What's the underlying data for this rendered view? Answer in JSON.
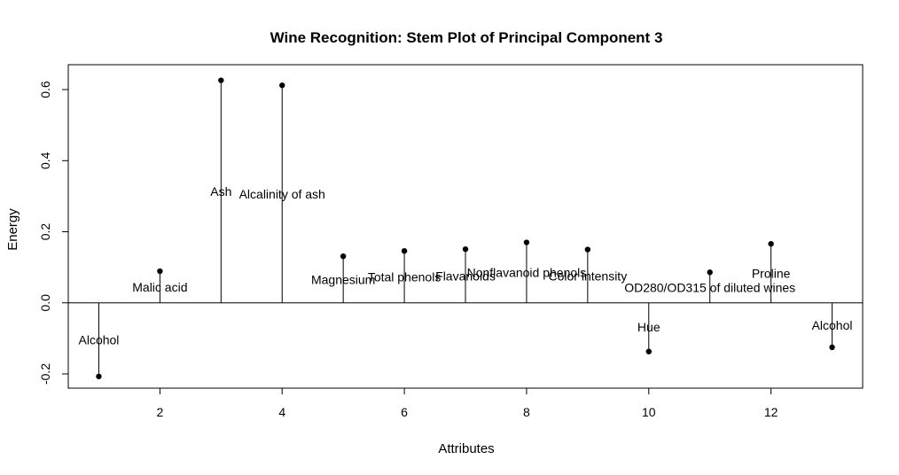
{
  "chart_data": {
    "type": "stem",
    "title": "Wine Recognition: Stem Plot of Principal Component 3",
    "xlabel": "Attributes",
    "ylabel": "Energy",
    "xlim": [
      0.5,
      13.5
    ],
    "ylim": [
      -0.24,
      0.67
    ],
    "x_ticks": [
      2,
      4,
      6,
      8,
      10,
      12
    ],
    "y_ticks": [
      -0.2,
      0.0,
      0.2,
      0.4,
      0.6
    ],
    "x_tick_labels": [
      "2",
      "4",
      "6",
      "8",
      "10",
      "12"
    ],
    "y_tick_labels": [
      "-0.2",
      "0.0",
      "0.2",
      "0.4",
      "0.6"
    ],
    "baseline": 0,
    "grid": false,
    "legend": "none",
    "points": [
      {
        "x": 1,
        "y": -0.207,
        "label": "Alcohol"
      },
      {
        "x": 2,
        "y": 0.089,
        "label": "Malic acid"
      },
      {
        "x": 3,
        "y": 0.626,
        "label": "Ash"
      },
      {
        "x": 4,
        "y": 0.612,
        "label": "Alcalinity of ash"
      },
      {
        "x": 5,
        "y": 0.131,
        "label": "Magnesium"
      },
      {
        "x": 6,
        "y": 0.146,
        "label": "Total phenols"
      },
      {
        "x": 7,
        "y": 0.151,
        "label": "Flavanoids"
      },
      {
        "x": 8,
        "y": 0.17,
        "label": "Nonflavanoid phenols"
      },
      {
        "x": 9,
        "y": 0.15,
        "label": "Color intensity"
      },
      {
        "x": 10,
        "y": -0.137,
        "label": "Hue"
      },
      {
        "x": 11,
        "y": 0.086,
        "label": "OD280/OD315 of diluted wines"
      },
      {
        "x": 12,
        "y": 0.166,
        "label": "Proline"
      },
      {
        "x": 13,
        "y": -0.125,
        "label": "Alcohol"
      }
    ]
  }
}
